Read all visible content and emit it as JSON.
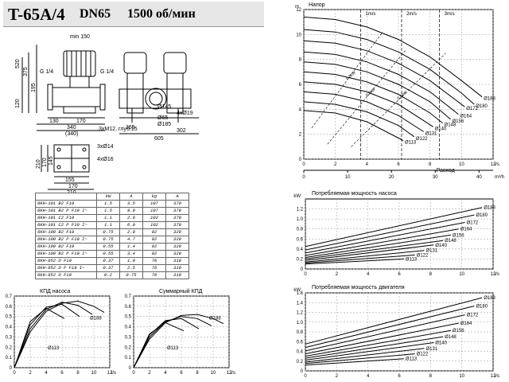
{
  "header": {
    "model": "T-65A/4",
    "dn": "DN65",
    "speed": "1500 об/мин"
  },
  "dimensions": {
    "side": [
      "min 150",
      "520",
      "375",
      "195",
      "120",
      "G 1/4",
      "G 1/4",
      "130",
      "170",
      "340",
      "(340)",
      "3xM12, глуб.15",
      "4xØ19",
      "Ø65"
    ],
    "front": [
      "165",
      "302",
      "605",
      "Ø145",
      "Ø185"
    ],
    "foot": [
      "3xØ14",
      "4xØ16",
      "210",
      "170",
      "145",
      "155",
      "170",
      "210"
    ]
  },
  "table": {
    "headers": [
      "",
      "kW",
      "A",
      "kg",
      "A"
    ],
    "rows": [
      [
        "6KH-101 B2 F19",
        "1.5",
        "3.5",
        "107",
        "370"
      ],
      [
        "6KH-101 B2 P F19 I~",
        "1.5",
        "9.0",
        "107",
        "370"
      ],
      [
        "6KH-101 C2 F19",
        "1.1",
        "2.6",
        "102",
        "370"
      ],
      [
        "6KH-101 C2 P F19 I~",
        "1.1",
        "6.9",
        "102",
        "370"
      ],
      [
        "6KH-100 B2 F19",
        "0.75",
        "2.0",
        "92",
        "320"
      ],
      [
        "6KH-100 B2 P F19 I~",
        "0.75",
        "4.7",
        "92",
        "320"
      ],
      [
        "6KH-100 B2 F19",
        "0.55",
        "1.4",
        "92",
        "320"
      ],
      [
        "6KH-100 B2 P F19 I~",
        "0.55",
        "3.4",
        "92",
        "320"
      ],
      [
        "6KH-852 D F19",
        "0.37",
        "1.0",
        "76",
        "310"
      ],
      [
        "6KH-852 D P F19 I~",
        "0.37",
        "2.5",
        "76",
        "310"
      ],
      [
        "6KH-852 D F19",
        "0.2",
        "0.75",
        "76",
        "310"
      ]
    ]
  },
  "chart_data": [
    {
      "type": "line",
      "title": "Напор",
      "xlabel": "Расход",
      "xunit": "l/s",
      "x2unit": "m³/h",
      "yunit": "m",
      "xlim": [
        0,
        12
      ],
      "ylim": [
        0,
        12
      ],
      "xticks": [
        "0",
        "2",
        "4",
        "6",
        "8",
        "10",
        "12"
      ],
      "x2ticks": [
        "0",
        "10",
        "20",
        "30",
        "40"
      ],
      "yticks": [
        "0",
        "2",
        "4",
        "6",
        "8",
        "10",
        "12"
      ],
      "velocity_labels": [
        "1m/s",
        "2m/s",
        "3m/s"
      ],
      "efficiency_labels": [
        "0.2kW",
        "0.3kW",
        "0.5kW"
      ],
      "diameters": [
        "Ø188",
        "Ø180",
        "Ø172",
        "Ø164",
        "Ø156",
        "Ø148",
        "Ø140",
        "Ø131",
        "Ø122",
        "Ø113"
      ],
      "series": [
        {
          "name": "Ø188",
          "x": [
            0,
            2,
            4,
            6,
            8,
            10,
            11.3
          ],
          "y": [
            11.4,
            11.2,
            10.6,
            9.6,
            8.2,
            6.3,
            5.0
          ]
        },
        {
          "name": "Ø180",
          "x": [
            0,
            2,
            4,
            6,
            8,
            10,
            10.8
          ],
          "y": [
            10.4,
            10.2,
            9.6,
            8.6,
            7.2,
            5.3,
            4.4
          ]
        },
        {
          "name": "Ø172",
          "x": [
            0,
            2,
            4,
            6,
            8,
            10.2
          ],
          "y": [
            9.5,
            9.3,
            8.7,
            7.7,
            6.3,
            4.2
          ]
        },
        {
          "name": "Ø164",
          "x": [
            0,
            2,
            4,
            6,
            8,
            9.8
          ],
          "y": [
            8.6,
            8.4,
            7.8,
            6.8,
            5.4,
            3.6
          ]
        },
        {
          "name": "Ø156",
          "x": [
            0,
            2,
            4,
            6,
            8,
            9.3
          ],
          "y": [
            7.8,
            7.6,
            7.0,
            6.0,
            4.6,
            3.2
          ]
        },
        {
          "name": "Ø148",
          "x": [
            0,
            2,
            4,
            6,
            8,
            8.8
          ],
          "y": [
            7.0,
            6.8,
            6.2,
            5.2,
            3.7,
            2.9
          ]
        },
        {
          "name": "Ø140",
          "x": [
            0,
            2,
            4,
            6,
            8.2
          ],
          "y": [
            6.2,
            6.0,
            5.4,
            4.4,
            2.6
          ]
        },
        {
          "name": "Ø131",
          "x": [
            0,
            2,
            4,
            6,
            7.6
          ],
          "y": [
            5.4,
            5.2,
            4.6,
            3.5,
            2.2
          ]
        },
        {
          "name": "Ø122",
          "x": [
            0,
            2,
            4,
            6,
            7.0
          ],
          "y": [
            4.6,
            4.4,
            3.8,
            2.7,
            1.8
          ]
        },
        {
          "name": "Ø113",
          "x": [
            0,
            2,
            4,
            6.3
          ],
          "y": [
            3.9,
            3.7,
            3.0,
            1.5
          ]
        }
      ]
    },
    {
      "type": "line",
      "title": "Потребляемая мощность насоса",
      "yunit": "kW",
      "xunit": "l/s",
      "xlim": [
        0,
        12
      ],
      "ylim": [
        0,
        1.4
      ],
      "xticks": [
        "0",
        "2",
        "4",
        "6",
        "8",
        "10",
        "12"
      ],
      "yticks": [
        "0",
        "0.2",
        "0.4",
        "0.6",
        "0.8",
        "1.0",
        "1.2"
      ],
      "series": [
        {
          "name": "Ø188",
          "x": [
            0,
            11.3
          ],
          "y": [
            0.45,
            1.23
          ]
        },
        {
          "name": "Ø180",
          "x": [
            0,
            10.8
          ],
          "y": [
            0.38,
            1.08
          ]
        },
        {
          "name": "Ø172",
          "x": [
            0,
            10.2
          ],
          "y": [
            0.32,
            0.93
          ]
        },
        {
          "name": "Ø164",
          "x": [
            0,
            9.8
          ],
          "y": [
            0.27,
            0.8
          ]
        },
        {
          "name": "Ø156",
          "x": [
            0,
            9.3
          ],
          "y": [
            0.23,
            0.68
          ]
        },
        {
          "name": "Ø148",
          "x": [
            0,
            8.8
          ],
          "y": [
            0.2,
            0.57
          ]
        },
        {
          "name": "Ø140",
          "x": [
            0,
            8.2
          ],
          "y": [
            0.17,
            0.48
          ]
        },
        {
          "name": "Ø131",
          "x": [
            0,
            7.6
          ],
          "y": [
            0.14,
            0.37
          ]
        },
        {
          "name": "Ø122",
          "x": [
            0,
            7.0
          ],
          "y": [
            0.12,
            0.28
          ]
        },
        {
          "name": "Ø113",
          "x": [
            0,
            6.3
          ],
          "y": [
            0.1,
            0.2
          ]
        }
      ]
    },
    {
      "type": "line",
      "title": "Потребляемая мощность двигателя",
      "yunit": "kW",
      "xunit": "l/s",
      "xlim": [
        0,
        12
      ],
      "ylim": [
        0,
        1.6
      ],
      "xticks": [
        "0",
        "2",
        "4",
        "6",
        "8",
        "10",
        "12"
      ],
      "yticks": [
        "0",
        "0.2",
        "0.4",
        "0.6",
        "0.8",
        "1.0",
        "1.2",
        "1.4",
        "1.6"
      ],
      "series": [
        {
          "name": "Ø188",
          "x": [
            0,
            11.3
          ],
          "y": [
            0.55,
            1.5
          ]
        },
        {
          "name": "Ø180",
          "x": [
            0,
            10.8
          ],
          "y": [
            0.48,
            1.33
          ]
        },
        {
          "name": "Ø172",
          "x": [
            0,
            10.2
          ],
          "y": [
            0.41,
            1.15
          ]
        },
        {
          "name": "Ø164",
          "x": [
            0,
            9.8
          ],
          "y": [
            0.35,
            0.98
          ]
        },
        {
          "name": "Ø156",
          "x": [
            0,
            9.3
          ],
          "y": [
            0.3,
            0.83
          ]
        },
        {
          "name": "Ø148",
          "x": [
            0,
            8.8
          ],
          "y": [
            0.26,
            0.7
          ]
        },
        {
          "name": "Ø140",
          "x": [
            0,
            8.2
          ],
          "y": [
            0.22,
            0.58
          ]
        },
        {
          "name": "Ø131",
          "x": [
            0,
            7.6
          ],
          "y": [
            0.18,
            0.46
          ]
        },
        {
          "name": "Ø122",
          "x": [
            0,
            7.0
          ],
          "y": [
            0.15,
            0.35
          ]
        },
        {
          "name": "Ø113",
          "x": [
            0,
            6.3
          ],
          "y": [
            0.12,
            0.25
          ]
        }
      ]
    },
    {
      "type": "line",
      "title": "КПД насоса",
      "xunit": "l/s",
      "xlim": [
        0,
        12
      ],
      "ylim": [
        0,
        0.7
      ],
      "xticks": [
        "0",
        "2",
        "4",
        "6",
        "8",
        "10",
        "12"
      ],
      "yticks": [
        "0",
        "0.1",
        "0.2",
        "0.3",
        "0.4",
        "0.5",
        "0.6",
        "0.7"
      ],
      "labels": [
        "Ø188",
        "Ø113"
      ],
      "series": [
        {
          "name": "Ø188",
          "x": [
            0,
            2,
            4,
            6,
            8,
            10,
            11.3
          ],
          "y": [
            0,
            0.35,
            0.55,
            0.63,
            0.65,
            0.6,
            0.54
          ]
        },
        {
          "name": "Ø164",
          "x": [
            0,
            2,
            4,
            6,
            8,
            9.8
          ],
          "y": [
            0,
            0.38,
            0.57,
            0.64,
            0.61,
            0.52
          ]
        },
        {
          "name": "Ø140",
          "x": [
            0,
            2,
            4,
            6,
            8.2
          ],
          "y": [
            0,
            0.42,
            0.59,
            0.62,
            0.5
          ]
        },
        {
          "name": "Ø113",
          "x": [
            0,
            2,
            4,
            6.3
          ],
          "y": [
            0,
            0.45,
            0.58,
            0.48
          ]
        }
      ]
    },
    {
      "type": "line",
      "title": "Суммарный КПД",
      "xunit": "l/s",
      "xlim": [
        0,
        12
      ],
      "ylim": [
        0,
        0.7
      ],
      "xticks": [
        "0",
        "2",
        "4",
        "6",
        "8",
        "10",
        "12"
      ],
      "yticks": [
        "0",
        "0.1",
        "0.2",
        "0.3",
        "0.4",
        "0.5",
        "0.6",
        "0.7"
      ],
      "labels": [
        "Ø188",
        "Ø113"
      ],
      "series": [
        {
          "name": "Ø188",
          "x": [
            0,
            2,
            4,
            6,
            8,
            10,
            11.3
          ],
          "y": [
            0,
            0.28,
            0.44,
            0.51,
            0.52,
            0.48,
            0.43
          ]
        },
        {
          "name": "Ø164",
          "x": [
            0,
            2,
            4,
            6,
            8,
            9.8
          ],
          "y": [
            0,
            0.3,
            0.45,
            0.5,
            0.48,
            0.41
          ]
        },
        {
          "name": "Ø140",
          "x": [
            0,
            2,
            4,
            6,
            8.2
          ],
          "y": [
            0,
            0.32,
            0.46,
            0.48,
            0.38
          ]
        },
        {
          "name": "Ø113",
          "x": [
            0,
            2,
            4,
            6.3
          ],
          "y": [
            0,
            0.33,
            0.44,
            0.36
          ]
        }
      ]
    }
  ]
}
